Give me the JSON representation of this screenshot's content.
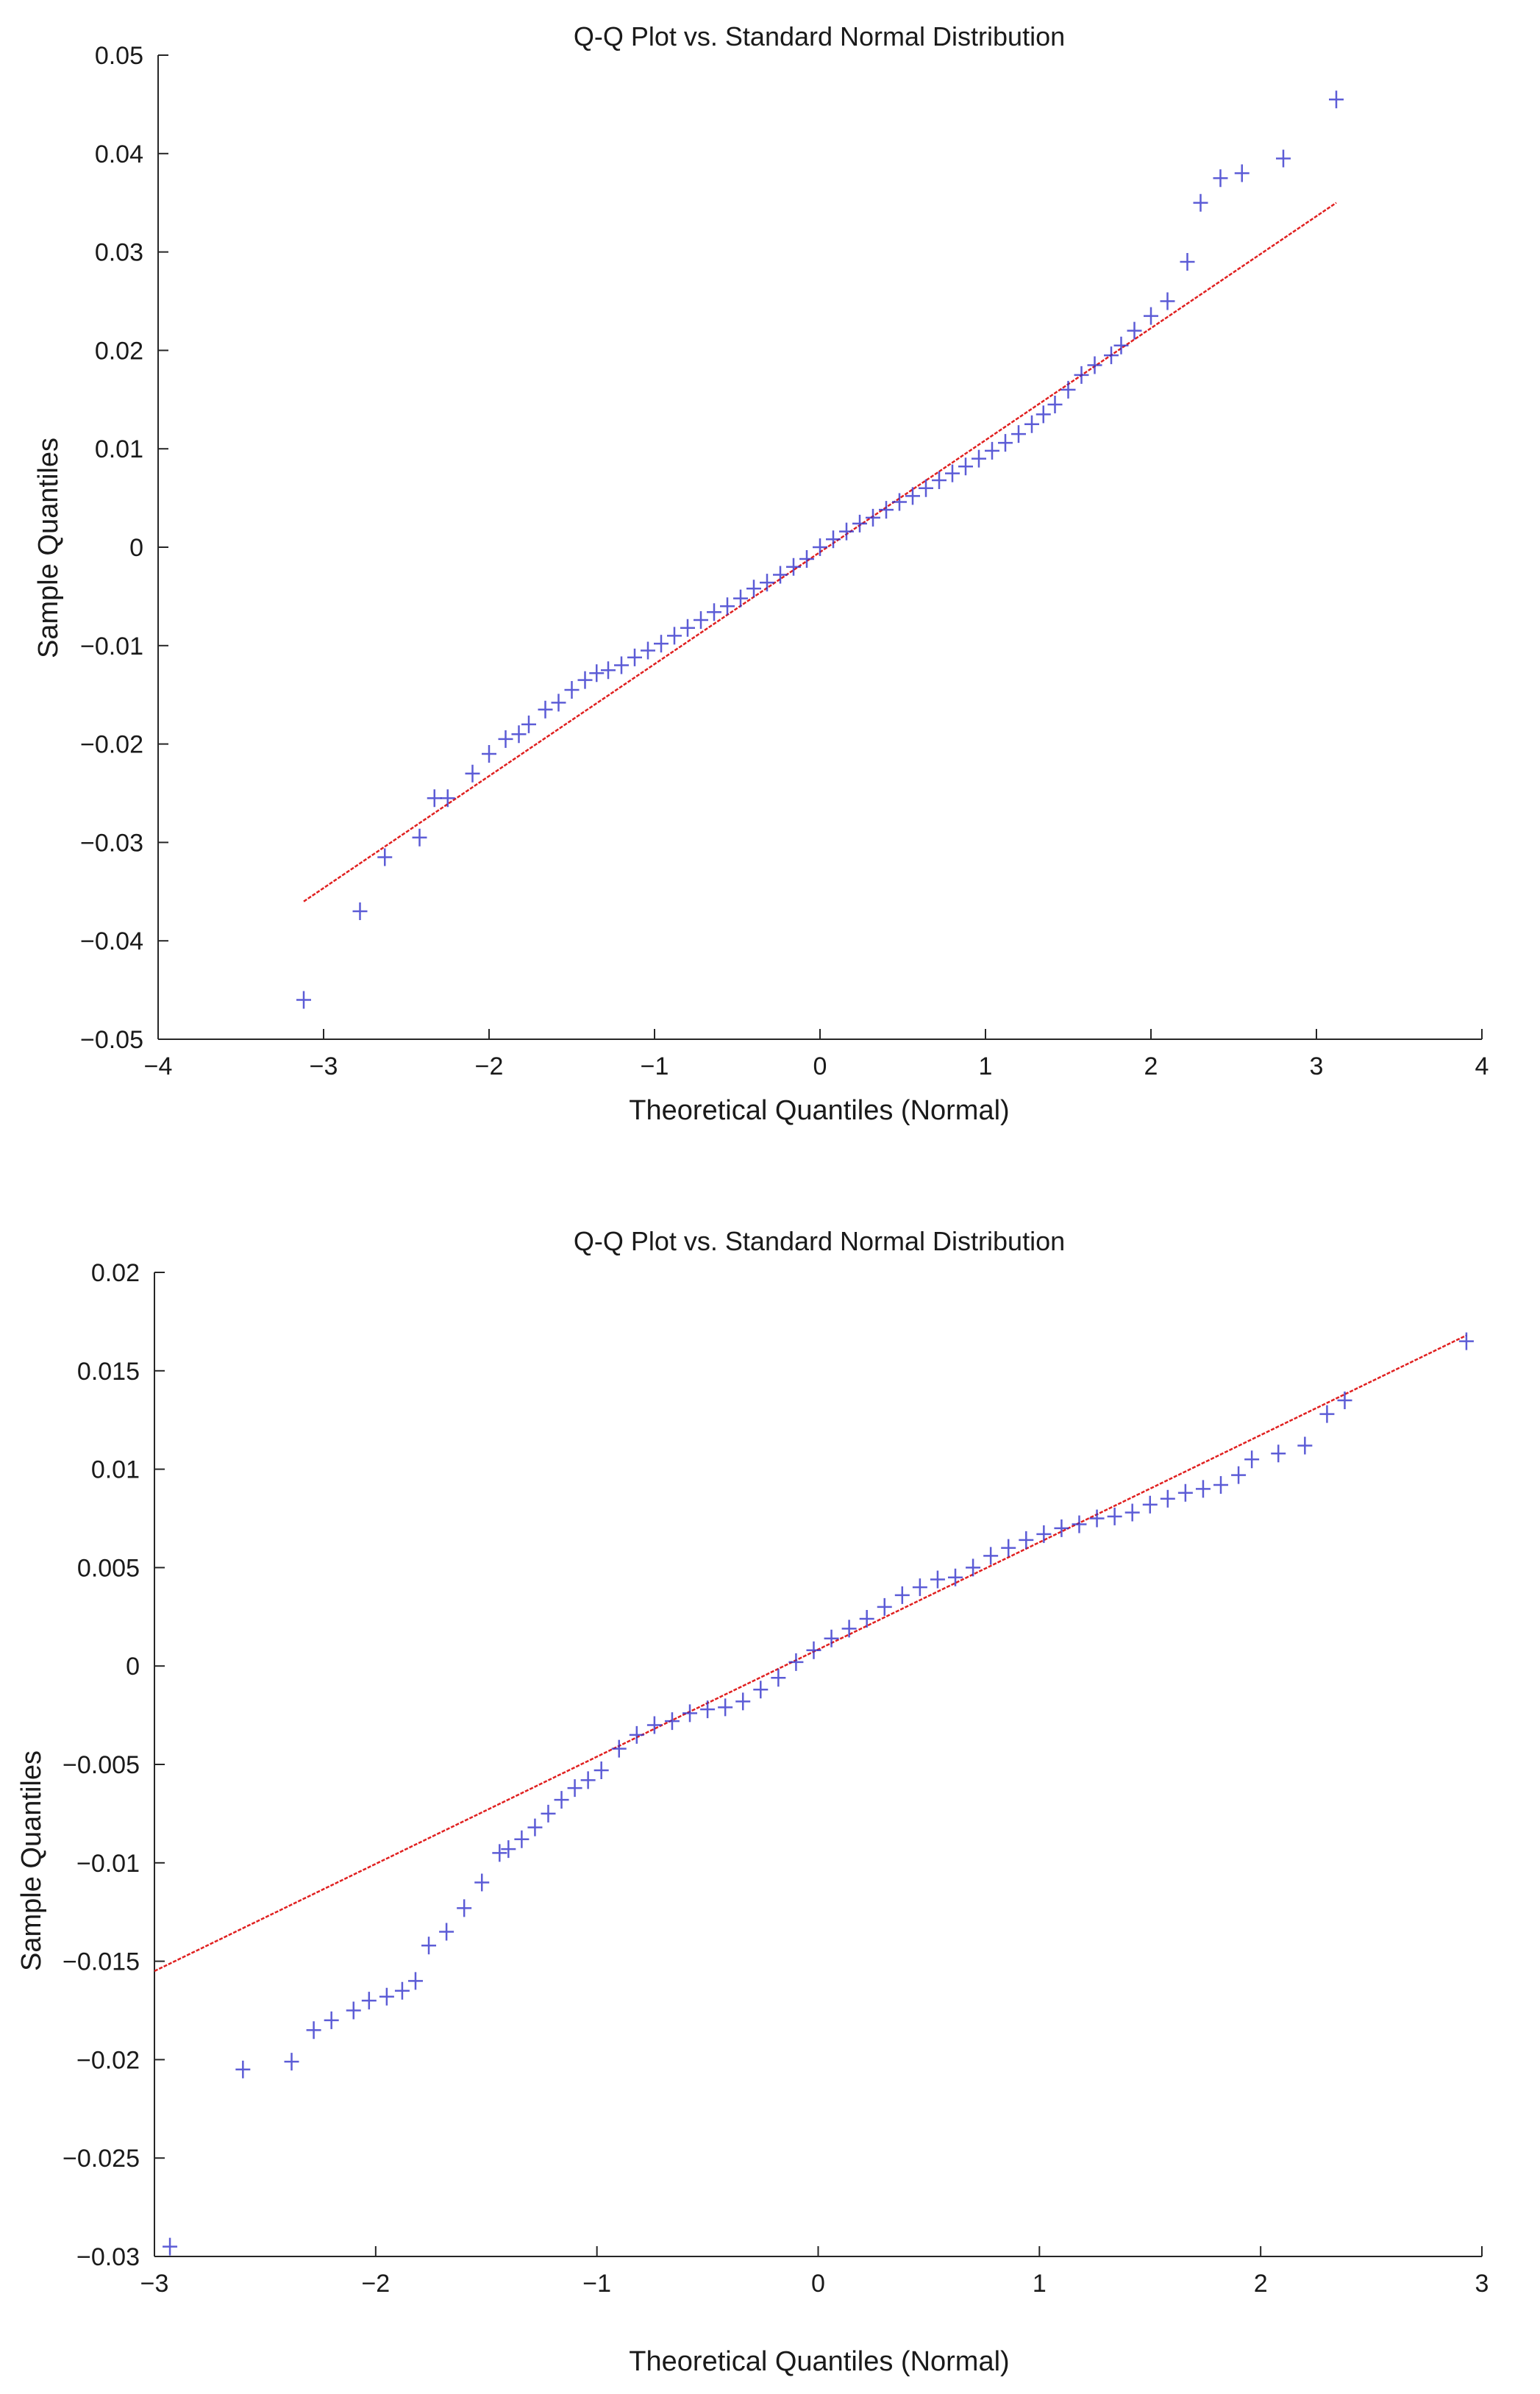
{
  "chart_data": [
    {
      "type": "scatter",
      "title": "Q-Q Plot vs. Standard Normal Distribution",
      "xlabel": "Theoretical Quantiles (Normal)",
      "ylabel": "Sample Quantiles",
      "xlim": [
        -4,
        4
      ],
      "ylim": [
        -0.05,
        0.05
      ],
      "xticks": [
        -4,
        -3,
        -2,
        -1,
        0,
        1,
        2,
        3,
        4
      ],
      "xtick_labels": [
        "−4",
        "−3",
        "−2",
        "−1",
        "0",
        "1",
        "2",
        "3",
        "4"
      ],
      "yticks": [
        -0.05,
        -0.04,
        -0.03,
        -0.02,
        -0.01,
        0,
        0.01,
        0.02,
        0.03,
        0.04,
        0.05
      ],
      "ytick_labels": [
        "−0.05",
        "−0.04",
        "−0.03",
        "−0.02",
        "−0.01",
        "0",
        "0.01",
        "0.02",
        "0.03",
        "0.04",
        "0.05"
      ],
      "grid": false,
      "marker": "+",
      "series": [
        {
          "name": "Sample",
          "color": "#3333cc",
          "x": [
            -3.12,
            -2.78,
            -2.63,
            -2.42,
            -2.33,
            -2.25,
            -2.1,
            -2.0,
            -1.9,
            -1.82,
            -1.76,
            -1.66,
            -1.58,
            -1.5,
            -1.42,
            -1.35,
            -1.28,
            -1.2,
            -1.12,
            -1.04,
            -0.96,
            -0.88,
            -0.8,
            -0.72,
            -0.64,
            -0.56,
            -0.48,
            -0.4,
            -0.32,
            -0.24,
            -0.16,
            -0.08,
            0.0,
            0.08,
            0.16,
            0.24,
            0.32,
            0.4,
            0.48,
            0.56,
            0.64,
            0.72,
            0.8,
            0.88,
            0.96,
            1.04,
            1.12,
            1.2,
            1.28,
            1.35,
            1.42,
            1.5,
            1.58,
            1.66,
            1.76,
            1.82,
            1.9,
            2.0,
            2.1,
            2.22,
            2.3,
            2.42,
            2.55,
            2.8,
            3.12
          ],
          "y": [
            -0.046,
            -0.037,
            -0.0315,
            -0.0295,
            -0.0255,
            -0.0255,
            -0.023,
            -0.021,
            -0.0195,
            -0.019,
            -0.018,
            -0.0165,
            -0.0158,
            -0.0145,
            -0.0135,
            -0.0128,
            -0.0125,
            -0.012,
            -0.0112,
            -0.0105,
            -0.0098,
            -0.009,
            -0.0082,
            -0.0074,
            -0.0066,
            -0.006,
            -0.0052,
            -0.0042,
            -0.0036,
            -0.0028,
            -0.002,
            -0.0012,
            0.0,
            0.0008,
            0.0016,
            0.0024,
            0.003,
            0.0038,
            0.0046,
            0.0052,
            0.006,
            0.0068,
            0.0075,
            0.0082,
            0.009,
            0.0098,
            0.0106,
            0.0115,
            0.0125,
            0.0135,
            0.0145,
            0.016,
            0.0175,
            0.0185,
            0.0195,
            0.0205,
            0.022,
            0.0235,
            0.025,
            0.029,
            0.035,
            0.0375,
            0.038,
            0.0395,
            0.0455
          ]
        }
      ],
      "reference_line": {
        "name": "Reference line",
        "color": "#e02020",
        "x": [
          -3.12,
          3.12
        ],
        "y": [
          -0.036,
          0.035
        ]
      }
    },
    {
      "type": "scatter",
      "title": "Q-Q Plot vs. Standard Normal Distribution",
      "xlabel": "Theoretical Quantiles (Normal)",
      "ylabel": "Sample Quantiles",
      "xlim": [
        -3,
        3
      ],
      "ylim": [
        -0.03,
        0.02
      ],
      "xticks": [
        -3,
        -2,
        -1,
        0,
        1,
        2,
        3
      ],
      "xtick_labels": [
        "−3",
        "−2",
        "−1",
        "0",
        "1",
        "2",
        "3"
      ],
      "yticks": [
        -0.03,
        -0.025,
        -0.02,
        -0.015,
        -0.01,
        -0.005,
        0,
        0.005,
        0.01,
        0.015,
        0.02
      ],
      "ytick_labels": [
        "−0.03",
        "−0.025",
        "−0.02",
        "−0.015",
        "−0.01",
        "−0.005",
        "0",
        "0.005",
        "0.01",
        "0.015",
        "0.02"
      ],
      "grid": false,
      "marker": "+",
      "series": [
        {
          "name": "Sample",
          "color": "#3333cc",
          "x": [
            -2.93,
            -2.6,
            -2.38,
            -2.28,
            -2.2,
            -2.1,
            -2.03,
            -1.95,
            -1.88,
            -1.82,
            -1.76,
            -1.68,
            -1.6,
            -1.52,
            -1.44,
            -1.4,
            -1.34,
            -1.28,
            -1.22,
            -1.16,
            -1.1,
            -1.04,
            -0.98,
            -0.9,
            -0.82,
            -0.74,
            -0.66,
            -0.58,
            -0.5,
            -0.42,
            -0.34,
            -0.26,
            -0.18,
            -0.1,
            -0.02,
            0.06,
            0.14,
            0.22,
            0.3,
            0.38,
            0.46,
            0.54,
            0.62,
            0.7,
            0.78,
            0.86,
            0.94,
            1.02,
            1.1,
            1.18,
            1.26,
            1.34,
            1.42,
            1.5,
            1.58,
            1.66,
            1.74,
            1.82,
            1.9,
            1.96,
            2.08,
            2.2,
            2.3,
            2.38,
            2.93
          ],
          "y": [
            -0.0295,
            -0.0205,
            -0.0201,
            -0.0185,
            -0.018,
            -0.0175,
            -0.017,
            -0.0168,
            -0.0165,
            -0.016,
            -0.0142,
            -0.0135,
            -0.0123,
            -0.011,
            -0.0095,
            -0.0093,
            -0.0088,
            -0.0082,
            -0.0075,
            -0.0068,
            -0.0062,
            -0.0058,
            -0.0053,
            -0.0042,
            -0.0035,
            -0.003,
            -0.0028,
            -0.0024,
            -0.0022,
            -0.0021,
            -0.0018,
            -0.0012,
            -0.0006,
            0.0002,
            0.0008,
            0.0014,
            0.0019,
            0.0024,
            0.003,
            0.0036,
            0.004,
            0.0044,
            0.0045,
            0.005,
            0.0056,
            0.006,
            0.0064,
            0.0067,
            0.007,
            0.0072,
            0.0075,
            0.0076,
            0.0078,
            0.0082,
            0.0085,
            0.0088,
            0.009,
            0.0092,
            0.0097,
            0.0105,
            0.0108,
            0.0112,
            0.0128,
            0.0135,
            0.0165
          ]
        }
      ],
      "reference_line": {
        "name": "Reference line",
        "color": "#e02020",
        "x": [
          -3.0,
          2.93
        ],
        "y": [
          -0.0155,
          0.0168
        ]
      }
    }
  ]
}
